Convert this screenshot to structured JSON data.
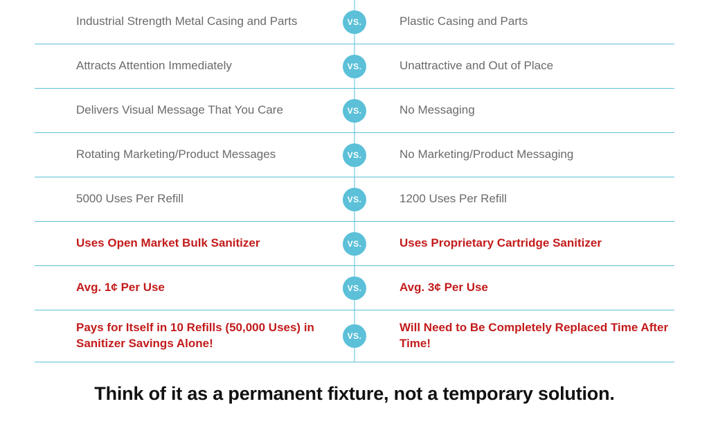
{
  "colors": {
    "accent": "#5bc0d8",
    "text_normal": "#6a6a6a",
    "text_emphasis": "#c31b1b",
    "vs_bg": "#5bc0d8",
    "vs_text": "#ffffff",
    "border": "#5bc0d8",
    "background": "#ffffff",
    "tagline": "#111111"
  },
  "vs_label": "VS.",
  "rows": [
    {
      "left": "Industrial Strength Metal Casing and Parts",
      "right": "Plastic Casing and Parts",
      "emphasis": false
    },
    {
      "left": "Attracts Attention Immediately",
      "right": "Unattractive and Out of Place",
      "emphasis": false
    },
    {
      "left": "Delivers Visual Message That You Care",
      "right": "No Messaging",
      "emphasis": false
    },
    {
      "left": "Rotating Marketing/Product Messages",
      "right": "No Marketing/Product Messaging",
      "emphasis": false
    },
    {
      "left": "5000 Uses Per Refill",
      "right": "1200 Uses Per Refill",
      "emphasis": false
    },
    {
      "left": "Uses Open Market Bulk Sanitizer",
      "right": "Uses Proprietary Cartridge Sanitizer",
      "emphasis": true
    },
    {
      "left": "Avg. 1¢ Per Use",
      "right": "Avg. 3¢ Per Use",
      "emphasis": true
    },
    {
      "left": "Pays for Itself in 10 Refills (50,000 Uses) in Sanitizer Savings Alone!",
      "right": "Will Need to Be Completely Replaced Time After Time!",
      "emphasis": true
    }
  ],
  "tagline": "Think of it as a permanent fixture, not a temporary solution."
}
